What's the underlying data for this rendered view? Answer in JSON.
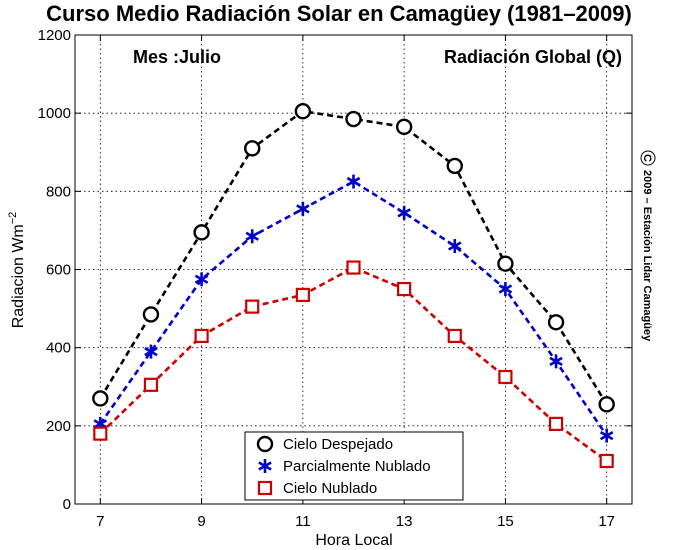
{
  "chart_data": {
    "type": "line",
    "title": "Curso Medio Radiación Solar en Camagüey (1981–2009)",
    "xlabel": "Hora Local",
    "ylabel_base": "Radiacion Wm",
    "ylabel_exp": "−2",
    "annotation_left": "Mes :Julio",
    "annotation_right": "Radiación Global (Q)",
    "copyright_symbol": "C",
    "copyright_text": "2009 – Estación Lidar Camagüey",
    "xlim": [
      6.5,
      17.5
    ],
    "ylim": [
      0,
      1200
    ],
    "x_ticks": [
      7,
      9,
      11,
      13,
      15,
      17
    ],
    "y_ticks": [
      0,
      200,
      400,
      600,
      800,
      1000,
      1200
    ],
    "grid": true,
    "legend_position": "bottom-center",
    "x": [
      7,
      8,
      9,
      10,
      11,
      12,
      13,
      14,
      15,
      16,
      17
    ],
    "series": [
      {
        "name": "Cielo Despejado",
        "color": "#000000",
        "marker": "circle",
        "values": [
          270,
          485,
          695,
          910,
          1005,
          985,
          965,
          865,
          615,
          465,
          255
        ]
      },
      {
        "name": "Parcialmente Nublado",
        "color": "#0000cc",
        "marker": "asterisk",
        "values": [
          205,
          390,
          575,
          685,
          755,
          825,
          745,
          660,
          550,
          365,
          175
        ]
      },
      {
        "name": "Cielo Nublado",
        "color": "#cc0000",
        "marker": "square",
        "values": [
          180,
          305,
          430,
          505,
          535,
          605,
          550,
          430,
          325,
          205,
          110
        ]
      }
    ]
  }
}
